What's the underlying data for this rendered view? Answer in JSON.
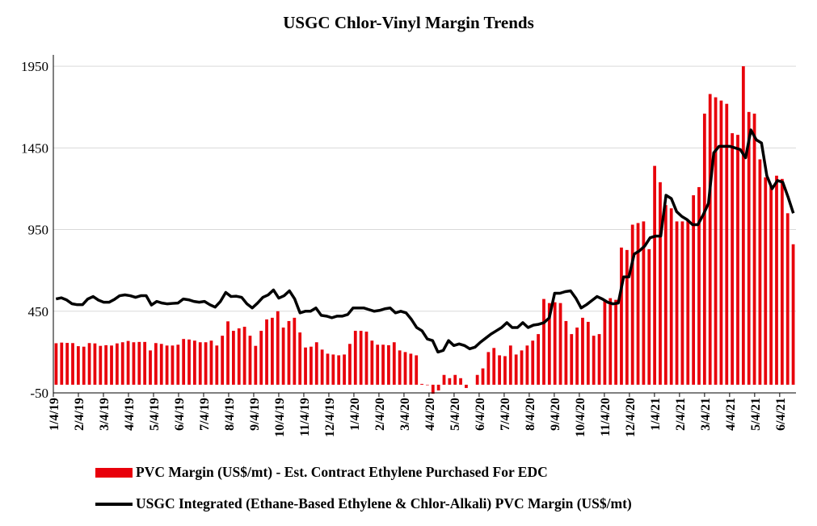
{
  "chart_data": {
    "type": "bar+line",
    "title": "USGC Chlor-Vinyl Margin Trends",
    "xlabel": "",
    "ylabel": "",
    "ylim": [
      -50,
      2000
    ],
    "yticks": [
      -50,
      450,
      950,
      1450,
      1950
    ],
    "ytick_labels": [
      "-50",
      "450",
      "950",
      "1450",
      "1950"
    ],
    "xtick_labels": [
      "1/4/19",
      "2/4/19",
      "3/4/19",
      "4/4/19",
      "5/4/19",
      "6/4/19",
      "7/4/19",
      "8/4/19",
      "9/4/19",
      "10/4/19",
      "11/4/19",
      "12/4/19",
      "1/4/20",
      "2/4/20",
      "3/4/20",
      "4/4/20",
      "5/4/20",
      "6/4/20",
      "7/4/20",
      "8/4/20",
      "9/4/20",
      "10/4/20",
      "11/4/20",
      "12/4/20",
      "1/4/21",
      "2/4/21",
      "3/4/21",
      "4/4/21",
      "5/4/21",
      "6/4/21"
    ],
    "legend_position": "bottom",
    "grid": "horizontal",
    "series": [
      {
        "name": "PVC Margin (US$/mt) - Est. Contract Ethylene Purchased For EDC",
        "type": "bar",
        "color": "#e8000b",
        "values": [
          254,
          258,
          256,
          255,
          236,
          233,
          255,
          253,
          238,
          242,
          240,
          253,
          260,
          268,
          260,
          262,
          262,
          210,
          255,
          250,
          240,
          240,
          245,
          280,
          277,
          270,
          260,
          260,
          270,
          240,
          300,
          388,
          330,
          345,
          355,
          300,
          238,
          330,
          400,
          410,
          450,
          350,
          390,
          410,
          320,
          228,
          233,
          260,
          215,
          190,
          185,
          180,
          185,
          250,
          330,
          330,
          325,
          270,
          245,
          245,
          242,
          260,
          210,
          200,
          190,
          180,
          5,
          -3,
          -55,
          -35,
          60,
          40,
          60,
          40,
          -20,
          0,
          60,
          100,
          200,
          225,
          180,
          175,
          240,
          185,
          210,
          240,
          270,
          310,
          525,
          500,
          505,
          500,
          390,
          310,
          350,
          410,
          385,
          300,
          310,
          520,
          530,
          520,
          840,
          825,
          980,
          990,
          1000,
          830,
          1340,
          1240,
          1100,
          1080,
          1000,
          1000,
          1010,
          1160,
          1210,
          1660,
          1780,
          1760,
          1740,
          1720,
          1540,
          1530,
          1950,
          1670,
          1660,
          1380,
          1270,
          1220,
          1280,
          1260,
          1050,
          860
        ]
      },
      {
        "name": "USGC Integrated (Ethane-Based Ethylene & Chlor-Alkali) PVC Margin (US$/mt)",
        "type": "line",
        "color": "#000000",
        "values": [
          525,
          532,
          519,
          496,
          490,
          490,
          525,
          540,
          518,
          505,
          505,
          522,
          545,
          550,
          545,
          535,
          545,
          545,
          488,
          510,
          500,
          495,
          498,
          500,
          525,
          520,
          510,
          505,
          510,
          490,
          475,
          510,
          565,
          540,
          542,
          535,
          495,
          470,
          500,
          535,
          550,
          580,
          530,
          545,
          575,
          525,
          440,
          450,
          450,
          470,
          425,
          420,
          410,
          420,
          420,
          430,
          470,
          470,
          470,
          460,
          450,
          455,
          465,
          470,
          440,
          450,
          440,
          400,
          350,
          330,
          280,
          270,
          200,
          210,
          270,
          240,
          250,
          240,
          220,
          230,
          260,
          285,
          310,
          330,
          350,
          380,
          350,
          350,
          380,
          350,
          365,
          370,
          380,
          410,
          560,
          560,
          570,
          575,
          530,
          470,
          490,
          515,
          540,
          525,
          505,
          495,
          500,
          660,
          660,
          800,
          820,
          850,
          900,
          910,
          910,
          1160,
          1140,
          1060,
          1030,
          1010,
          980,
          980,
          1040,
          1110,
          1420,
          1460,
          1460,
          1460,
          1450,
          1440,
          1390,
          1560,
          1500,
          1480,
          1280,
          1200,
          1250,
          1240,
          1150,
          1050
        ]
      }
    ]
  },
  "legend": {
    "bar_label": "PVC Margin (US$/mt) - Est. Contract Ethylene Purchased For EDC",
    "line_label": "USGC Integrated (Ethane-Based Ethylene & Chlor-Alkali) PVC Margin (US$/mt)"
  }
}
